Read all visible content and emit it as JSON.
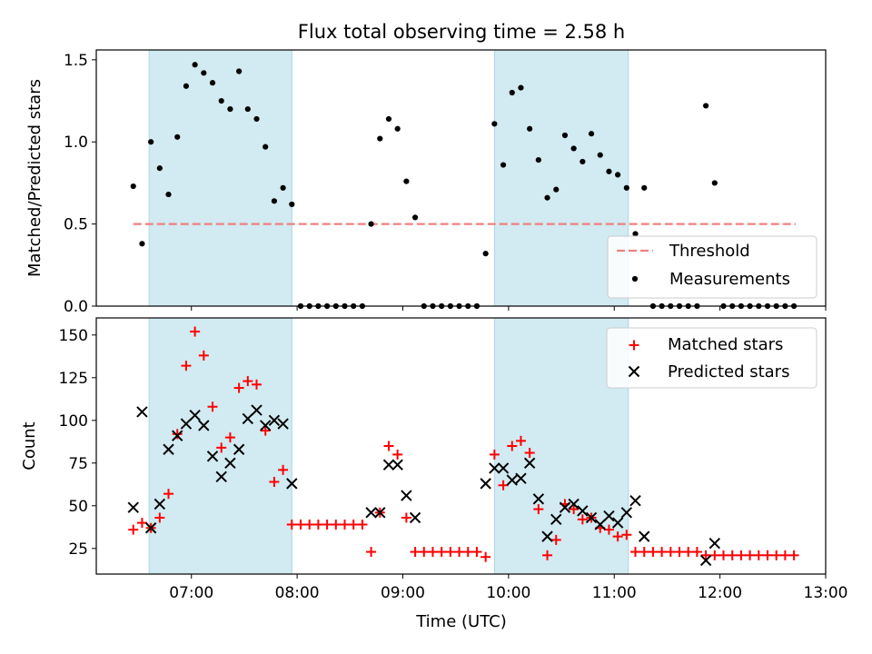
{
  "title": "Flux total observing time = 2.58 h",
  "shaded_intervals": {
    "color": "#add8e6",
    "ranges": [
      [
        "06:36",
        "07:57"
      ],
      [
        "09:52",
        "11:08"
      ]
    ]
  },
  "chart_data": [
    {
      "type": "scatter",
      "ylabel": "Matched/Predicted stars",
      "xlim": [
        "06:06",
        "13:00"
      ],
      "ylim": [
        0,
        1.56
      ],
      "yticks": [
        "0.0",
        "0.5",
        "1.0",
        "1.5"
      ],
      "threshold": {
        "name": "Threshold",
        "value": 0.5,
        "x_range": [
          "06:27",
          "12:43"
        ],
        "color": "#f08080"
      },
      "legend": {
        "position": "lower-right",
        "entries": [
          "Threshold",
          "Measurements"
        ]
      },
      "series": [
        {
          "name": "Measurements",
          "color": "#000000",
          "x": [
            "06:27",
            "06:32",
            "06:37",
            "06:42",
            "06:47",
            "06:52",
            "06:57",
            "07:02",
            "07:07",
            "07:12",
            "07:17",
            "07:22",
            "07:27",
            "07:32",
            "07:37",
            "07:42",
            "07:47",
            "07:52",
            "07:57",
            "08:02",
            "08:07",
            "08:12",
            "08:17",
            "08:22",
            "08:27",
            "08:32",
            "08:37",
            "08:42",
            "08:47",
            "08:52",
            "08:57",
            "09:02",
            "09:07",
            "09:12",
            "09:17",
            "09:22",
            "09:27",
            "09:32",
            "09:37",
            "09:42",
            "09:47",
            "09:52",
            "09:57",
            "10:02",
            "10:07",
            "10:12",
            "10:17",
            "10:22",
            "10:27",
            "10:32",
            "10:37",
            "10:42",
            "10:47",
            "10:52",
            "10:57",
            "11:02",
            "11:07",
            "11:12",
            "11:17",
            "11:22",
            "11:27",
            "11:32",
            "11:37",
            "11:42",
            "11:47",
            "11:52",
            "11:57",
            "12:02",
            "12:07",
            "12:12",
            "12:17",
            "12:22",
            "12:27",
            "12:32",
            "12:37",
            "12:42"
          ],
          "y": [
            0.73,
            0.38,
            1.0,
            0.84,
            0.68,
            1.03,
            1.34,
            1.47,
            1.42,
            1.36,
            1.25,
            1.2,
            1.43,
            1.2,
            1.14,
            0.97,
            0.64,
            0.72,
            0.62,
            0,
            0,
            0,
            0,
            0,
            0,
            0,
            0,
            0.5,
            1.02,
            1.14,
            1.08,
            0.76,
            0.54,
            0,
            0,
            0,
            0,
            0,
            0,
            0,
            0.32,
            1.11,
            0.86,
            1.3,
            1.33,
            1.08,
            0.89,
            0.66,
            0.71,
            1.04,
            0.96,
            0.88,
            1.05,
            0.92,
            0.82,
            0.8,
            0.72,
            0.44,
            0.72,
            0,
            0,
            0,
            0,
            0,
            0,
            1.22,
            0.75,
            0,
            0,
            0,
            0,
            0,
            0,
            0,
            0,
            0
          ]
        }
      ]
    },
    {
      "type": "scatter",
      "ylabel": "Count",
      "xlabel": "Time (UTC)",
      "xlim": [
        "06:06",
        "13:00"
      ],
      "ylim": [
        10,
        160
      ],
      "yticks": [
        "25",
        "50",
        "75",
        "100",
        "125",
        "150"
      ],
      "xticks": [
        "07:00",
        "08:00",
        "09:00",
        "10:00",
        "11:00",
        "12:00",
        "13:00"
      ],
      "legend": {
        "position": "upper-right",
        "entries": [
          "Matched stars",
          "Predicted stars"
        ]
      },
      "series": [
        {
          "name": "Matched stars",
          "marker": "plus",
          "color": "#ff0000",
          "x": [
            "06:27",
            "06:32",
            "06:37",
            "06:42",
            "06:47",
            "06:52",
            "06:57",
            "07:02",
            "07:07",
            "07:12",
            "07:17",
            "07:22",
            "07:27",
            "07:32",
            "07:37",
            "07:42",
            "07:47",
            "07:52",
            "07:57",
            "08:02",
            "08:07",
            "08:12",
            "08:17",
            "08:22",
            "08:27",
            "08:32",
            "08:37",
            "08:42",
            "08:47",
            "08:52",
            "08:57",
            "09:02",
            "09:07",
            "09:12",
            "09:17",
            "09:22",
            "09:27",
            "09:32",
            "09:37",
            "09:42",
            "09:47",
            "09:52",
            "09:57",
            "10:02",
            "10:07",
            "10:12",
            "10:17",
            "10:22",
            "10:27",
            "10:32",
            "10:37",
            "10:42",
            "10:47",
            "10:52",
            "10:57",
            "11:02",
            "11:07",
            "11:12",
            "11:17",
            "11:22",
            "11:27",
            "11:32",
            "11:37",
            "11:42",
            "11:47",
            "11:52",
            "11:57",
            "12:02",
            "12:07",
            "12:12",
            "12:17",
            "12:22",
            "12:27",
            "12:32",
            "12:37",
            "12:42"
          ],
          "y": [
            36,
            40,
            37,
            43,
            57,
            92,
            132,
            152,
            138,
            108,
            84,
            90,
            119,
            123,
            121,
            94,
            64,
            71,
            39,
            39,
            39,
            39,
            39,
            39,
            39,
            39,
            39,
            23,
            46,
            85,
            80,
            43,
            23,
            23,
            23,
            23,
            23,
            23,
            23,
            23,
            20,
            80,
            62,
            85,
            88,
            81,
            48,
            21,
            30,
            51,
            48,
            42,
            43,
            37,
            36,
            32,
            33,
            23,
            23,
            23,
            23,
            23,
            23,
            23,
            23,
            21,
            21,
            21,
            21,
            21,
            21,
            21,
            21,
            21,
            21,
            21
          ]
        },
        {
          "name": "Predicted stars",
          "marker": "x",
          "color": "#000000",
          "x": [
            "06:27",
            "06:32",
            "06:37",
            "06:42",
            "06:47",
            "06:52",
            "06:57",
            "07:02",
            "07:07",
            "07:12",
            "07:17",
            "07:22",
            "07:27",
            "07:32",
            "07:37",
            "07:42",
            "07:47",
            "07:52",
            "07:57",
            "08:42",
            "08:47",
            "08:52",
            "08:57",
            "09:02",
            "09:07",
            "09:47",
            "09:52",
            "09:57",
            "10:02",
            "10:07",
            "10:12",
            "10:17",
            "10:22",
            "10:27",
            "10:32",
            "10:37",
            "10:42",
            "10:47",
            "10:52",
            "10:57",
            "11:02",
            "11:07",
            "11:12",
            "11:17",
            "11:52",
            "11:57"
          ],
          "y": [
            49,
            105,
            37,
            51,
            83,
            91,
            98,
            103,
            97,
            79,
            67,
            75,
            83,
            101,
            106,
            97,
            100,
            98,
            63,
            46,
            46,
            74,
            74,
            56,
            43,
            63,
            72,
            72,
            65,
            66,
            75,
            54,
            32,
            42,
            49,
            51,
            47,
            43,
            39,
            44,
            40,
            46,
            53,
            32,
            18,
            28
          ]
        }
      ]
    }
  ]
}
